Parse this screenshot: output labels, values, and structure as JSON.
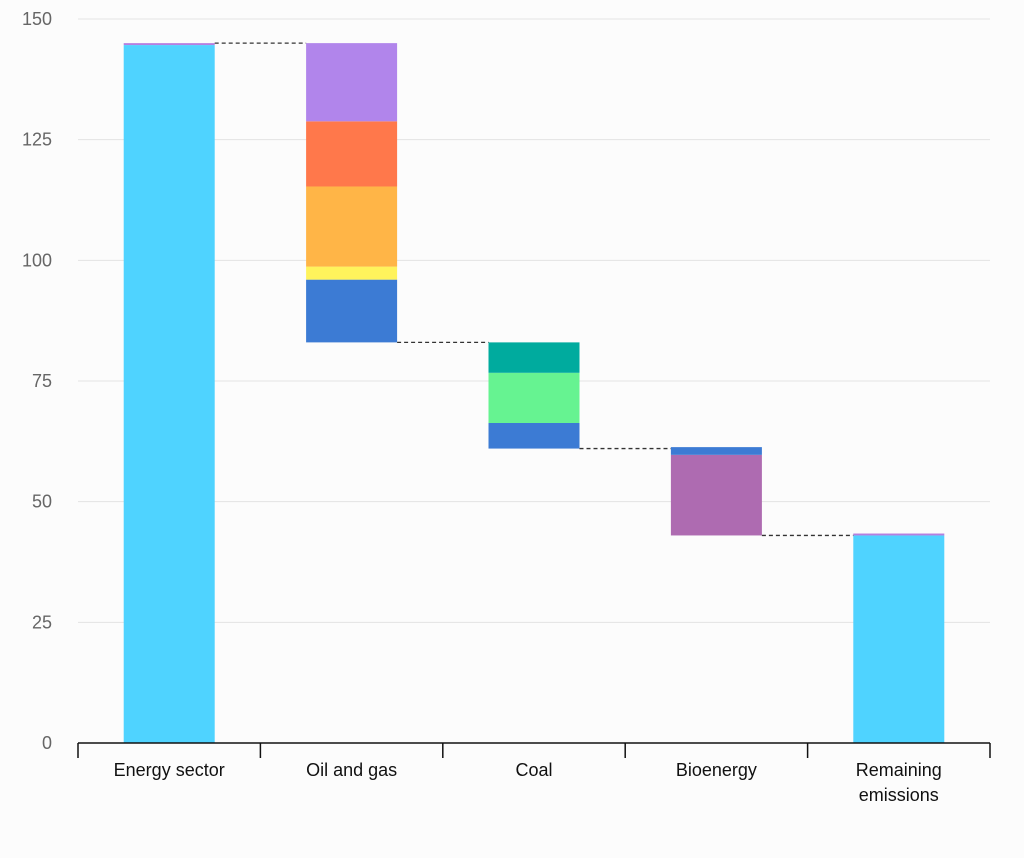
{
  "chart_data": {
    "type": "waterfall",
    "title": "",
    "xlabel": "",
    "ylabel": "",
    "ylim": [
      0,
      150
    ],
    "yticks": [
      0,
      25,
      50,
      75,
      100,
      125,
      150
    ],
    "grid": true,
    "categories": [
      "Energy sector",
      "Oil and gas",
      "Coal",
      "Bioenergy",
      "Remaining emissions"
    ],
    "colors": {
      "total": "#4fd3ff",
      "total_cap": "#b57fe0",
      "oilgas_1": "#3c7bd4",
      "oilgas_2": "#fff35c",
      "oilgas_3": "#ffb547",
      "oilgas_4": "#ff784b",
      "oilgas_5": "#b185eb",
      "coal_1": "#3c7bd4",
      "coal_2": "#66f391",
      "coal_3": "#00ab9e",
      "bio_1": "#ae6bb1",
      "bio_2": "#3c7bd4",
      "connector": "#333333",
      "grid": "#e3e3e3",
      "axis": "#111111"
    },
    "bars": [
      {
        "category": "Energy sector",
        "kind": "total",
        "segments": [
          {
            "from": 0,
            "to": 144.6,
            "color_key": "total"
          },
          {
            "from": 144.6,
            "to": 145,
            "color_key": "total_cap"
          }
        ]
      },
      {
        "category": "Oil and gas",
        "kind": "decrease",
        "segments": [
          {
            "from": 83,
            "to": 96,
            "color_key": "oilgas_1"
          },
          {
            "from": 96,
            "to": 98.7,
            "color_key": "oilgas_2"
          },
          {
            "from": 98.7,
            "to": 115.3,
            "color_key": "oilgas_3"
          },
          {
            "from": 115.3,
            "to": 128.8,
            "color_key": "oilgas_4"
          },
          {
            "from": 128.8,
            "to": 145,
            "color_key": "oilgas_5"
          }
        ]
      },
      {
        "category": "Coal",
        "kind": "decrease",
        "segments": [
          {
            "from": 61,
            "to": 66.3,
            "color_key": "coal_1"
          },
          {
            "from": 66.3,
            "to": 76.7,
            "color_key": "coal_2"
          },
          {
            "from": 76.7,
            "to": 83,
            "color_key": "coal_3"
          }
        ]
      },
      {
        "category": "Bioenergy",
        "kind": "decrease",
        "segments": [
          {
            "from": 43,
            "to": 59.7,
            "color_key": "bio_1"
          },
          {
            "from": 59.7,
            "to": 61.3,
            "color_key": "bio_2"
          }
        ]
      },
      {
        "category": "Remaining emissions",
        "kind": "total",
        "segments": [
          {
            "from": 0,
            "to": 43,
            "color_key": "total"
          },
          {
            "from": 43,
            "to": 43.4,
            "color_key": "total_cap"
          }
        ]
      }
    ],
    "connectors": [
      {
        "from_index": 0,
        "to_index": 1,
        "value": 145
      },
      {
        "from_index": 1,
        "to_index": 2,
        "value": 83
      },
      {
        "from_index": 2,
        "to_index": 3,
        "value": 61
      },
      {
        "from_index": 3,
        "to_index": 4,
        "value": 43
      }
    ]
  }
}
